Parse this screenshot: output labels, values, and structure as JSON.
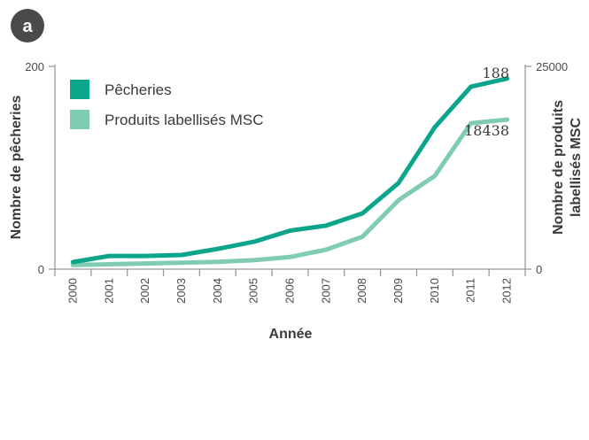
{
  "panel_letter": "a",
  "colors": {
    "fisheries": "#0aa58a",
    "products": "#80cbb4",
    "axis": "#9a9a9a",
    "badge": "#4a4a4a"
  },
  "chart_data": {
    "type": "line",
    "x": [
      "2000",
      "2001",
      "2002",
      "2003",
      "2004",
      "2005",
      "2006",
      "2007",
      "2008",
      "2009",
      "2010",
      "2011",
      "2012"
    ],
    "xlabel": "Année",
    "ylabel_left": "Nombre de pêcheries",
    "ylabel_right": "Nombre de produits labellisés MSC",
    "ylabel_right_lines": [
      "Nombre de produits",
      "labellisés MSC"
    ],
    "ylim_left": [
      0,
      200
    ],
    "ylim_right": [
      0,
      25000
    ],
    "yticks_left": [
      "0",
      "200"
    ],
    "yticks_right": [
      "0",
      "25000"
    ],
    "legend_position": "top-left",
    "series": [
      {
        "name": "Pêcheries",
        "axis": "left",
        "color": "#0aa58a",
        "values": [
          7,
          13,
          13,
          14,
          20,
          27,
          38,
          43,
          55,
          85,
          140,
          180,
          188
        ],
        "end_label": "188"
      },
      {
        "name": "Produits labellisés MSC",
        "axis": "right",
        "color": "#80cbb4",
        "values": [
          500,
          600,
          700,
          800,
          900,
          1100,
          1500,
          2400,
          4000,
          8500,
          11500,
          18000,
          18438
        ],
        "end_label": "18438"
      }
    ]
  }
}
